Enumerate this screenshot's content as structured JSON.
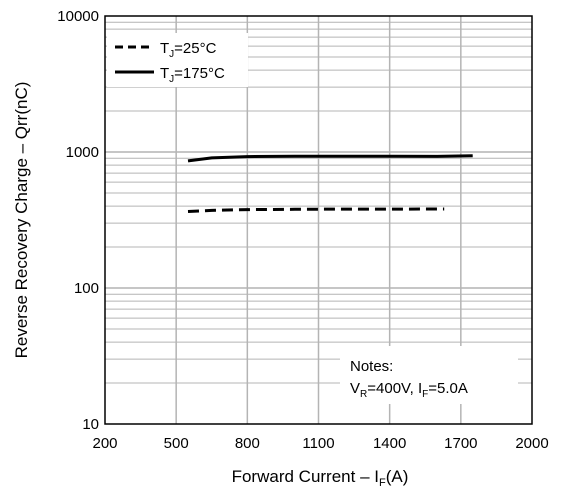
{
  "chart_data": {
    "type": "line",
    "xlabel_main": "Forward Current  – I",
    "xlabel_sub": "F",
    "xlabel_tail": "(A)",
    "ylabel": "Reverse Recovery Charge  –  Qrr(nC)",
    "xlim": [
      200,
      2000
    ],
    "ylim": [
      10,
      10000
    ],
    "yscale": "log",
    "grid": true,
    "legend_position": "top-left",
    "xticks": [
      200,
      500,
      800,
      1100,
      1400,
      1700,
      2000
    ],
    "yticks": [
      10,
      100,
      1000,
      10000
    ],
    "series": [
      {
        "name_main": "T",
        "name_sub": "J",
        "name_tail": "=25°C",
        "style": "dashed",
        "x": [
          550,
          650,
          800,
          1000,
          1200,
          1400,
          1630
        ],
        "y": [
          365,
          372,
          377,
          379,
          380,
          380,
          381
        ]
      },
      {
        "name_main": "T",
        "name_sub": "J",
        "name_tail": "=175°C",
        "style": "solid",
        "x": [
          550,
          650,
          800,
          1000,
          1200,
          1400,
          1600,
          1750
        ],
        "y": [
          860,
          905,
          925,
          930,
          932,
          930,
          928,
          940
        ]
      }
    ],
    "note": {
      "title": "Notes:",
      "line_v": "V",
      "line_v_sub": "R",
      "line_mid": "=400V, I",
      "line_i_sub": "F",
      "line_tail": "=5.0A"
    },
    "colors": {
      "line": "#000000",
      "grid": "#b4b4b4",
      "axis": "#000000"
    }
  }
}
